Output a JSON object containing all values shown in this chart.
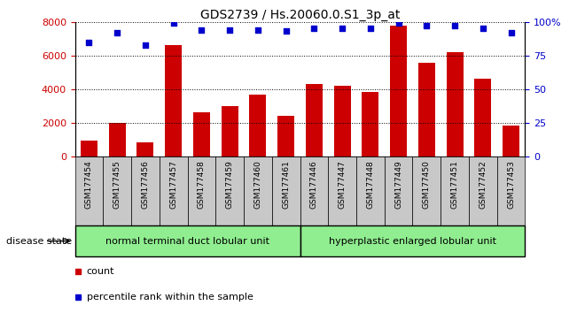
{
  "title": "GDS2739 / Hs.20060.0.S1_3p_at",
  "categories": [
    "GSM177454",
    "GSM177455",
    "GSM177456",
    "GSM177457",
    "GSM177458",
    "GSM177459",
    "GSM177460",
    "GSM177461",
    "GSM177446",
    "GSM177447",
    "GSM177448",
    "GSM177449",
    "GSM177450",
    "GSM177451",
    "GSM177452",
    "GSM177453"
  ],
  "counts": [
    950,
    2000,
    850,
    6600,
    2650,
    3000,
    3700,
    2400,
    4300,
    4200,
    3850,
    7800,
    5550,
    6200,
    4650,
    1850
  ],
  "percentiles": [
    85,
    92,
    83,
    99,
    94,
    94,
    94,
    93,
    95,
    95,
    95,
    99,
    97,
    97,
    95,
    92
  ],
  "bar_color": "#cc0000",
  "dot_color": "#0000cc",
  "group1_label": "normal terminal duct lobular unit",
  "group2_label": "hyperplastic enlarged lobular unit",
  "group1_color": "#90ee90",
  "group2_color": "#90ee90",
  "group1_count": 8,
  "group2_count": 8,
  "disease_state_label": "disease state",
  "ylim_left": [
    0,
    8000
  ],
  "ylim_right": [
    0,
    100
  ],
  "yticks_left": [
    0,
    2000,
    4000,
    6000,
    8000
  ],
  "yticks_right": [
    0,
    25,
    50,
    75,
    100
  ],
  "legend_count_label": "count",
  "legend_pct_label": "percentile rank within the sample",
  "background_color": "#ffffff",
  "tick_area_color": "#c8c8c8"
}
